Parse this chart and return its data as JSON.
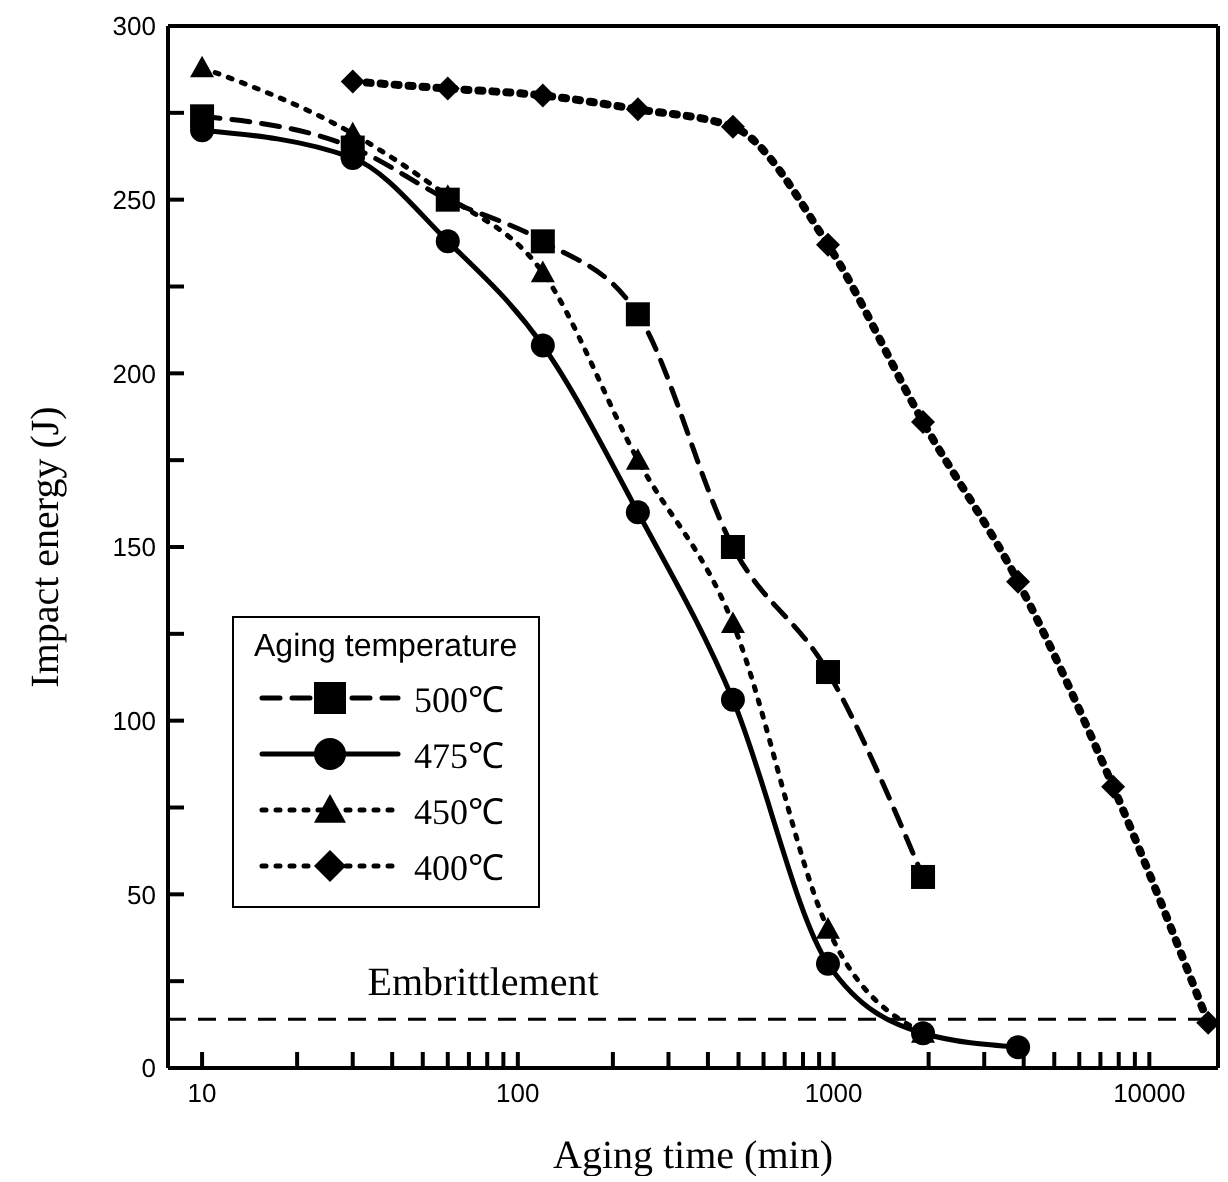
{
  "chart_data": {
    "type": "line",
    "xlabel": "Aging time (min)",
    "ylabel": "Impact energy (J)",
    "legend_title": "Aging temperature",
    "log": "x",
    "xlim": [
      7.8,
      16500
    ],
    "ylim": [
      0,
      300
    ],
    "xticks": [
      10,
      {
        "value": 20,
        "label": null
      },
      {
        "value": 30,
        "label": null
      },
      {
        "value": 40,
        "label": null
      },
      {
        "value": 50,
        "label": null
      },
      {
        "value": 60,
        "label": null
      },
      {
        "value": 70,
        "label": null
      },
      {
        "value": 80,
        "label": null
      },
      {
        "value": 90,
        "label": null
      },
      100,
      {
        "value": 200,
        "label": null
      },
      {
        "value": 300,
        "label": null
      },
      {
        "value": 400,
        "label": null
      },
      {
        "value": 500,
        "label": null
      },
      {
        "value": 600,
        "label": null
      },
      {
        "value": 700,
        "label": null
      },
      {
        "value": 800,
        "label": null
      },
      {
        "value": 900,
        "label": null
      },
      1000,
      {
        "value": 2000,
        "label": null
      },
      {
        "value": 3000,
        "label": null
      },
      {
        "value": 4000,
        "label": null
      },
      {
        "value": 5000,
        "label": null
      },
      {
        "value": 6000,
        "label": null
      },
      {
        "value": 7000,
        "label": null
      },
      {
        "value": 8000,
        "label": null
      },
      {
        "value": 9000,
        "label": null
      },
      10000
    ],
    "yticks": [
      0,
      {
        "value": 25,
        "label": null
      },
      50,
      {
        "value": 75,
        "label": null
      },
      100,
      {
        "value": 125,
        "label": null
      },
      150,
      {
        "value": 175,
        "label": null
      },
      200,
      {
        "value": 225,
        "label": null
      },
      250,
      {
        "value": 275,
        "label": null
      },
      300
    ],
    "legend": "left",
    "grid": false,
    "ref_lines": [
      {
        "axis": "y",
        "value": 14,
        "label": "Embrittlement",
        "line_style": "dashed",
        "color": "#000000"
      }
    ],
    "series": [
      {
        "name": "500℃",
        "color": "#000000",
        "marker": "square",
        "line_style": "dashed",
        "x": [
          10,
          30,
          60,
          120,
          240,
          480,
          960,
          1920
        ],
        "values": [
          274,
          265,
          250,
          238,
          217,
          150,
          114,
          55
        ]
      },
      {
        "name": "475℃",
        "color": "#000000",
        "marker": "circle",
        "line_style": "solid",
        "x": [
          10,
          30,
          60,
          120,
          240,
          480,
          960,
          1920,
          3840
        ],
        "values": [
          270,
          262,
          238,
          208,
          160,
          106,
          30,
          10,
          6
        ]
      },
      {
        "name": "450℃",
        "color": "#000000",
        "marker": "triangle",
        "line_style": "dotted",
        "x": [
          10,
          30,
          60,
          120,
          240,
          480,
          960,
          1920
        ],
        "values": [
          288,
          269,
          251,
          229,
          175,
          128,
          40,
          10
        ]
      },
      {
        "name": "400℃",
        "color": "#000000",
        "marker": "diamond",
        "line_style": "dotted",
        "x": [
          30,
          60,
          120,
          240,
          480,
          960,
          1920,
          3840,
          7680,
          15360
        ],
        "values": [
          284,
          282,
          280,
          276,
          271,
          237,
          186,
          140,
          81,
          13
        ]
      }
    ]
  }
}
